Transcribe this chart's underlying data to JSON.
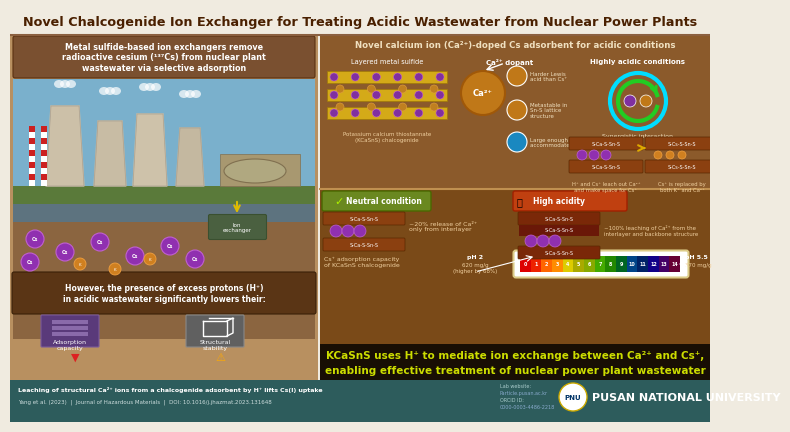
{
  "title": "Novel Chalcogenide Ion Exchanger for Treating Acidic Wastewater from Nuclear Power Plants",
  "bg_color": "#f0ebe0",
  "title_color": "#5a2d0c",
  "title_bg": "#f0ebe0",
  "left_panel_bg": "#b8956a",
  "right_panel_top_bg": "#8b5a2b",
  "right_panel_mid_bg": "#7a4a18",
  "bottom_bar_bg": "#1a0f05",
  "footer_bg": "#2d5c5c",
  "left_title": "Metal sulfide-based ion exchangers remove\nradioactive cesium (¹³⁷Cs) from nuclear plant\nwastewater via selective adsorption",
  "right_title": "Novel calcium ion (Ca²⁺)-doped Cs adsorbent for acidic conditions",
  "neutral_label": "Neutral condition",
  "high_acidity_label": "High acidity",
  "cs_capacity_label": "Cs⁺ adsorption capacity\nof KCaSnS chalcogenide",
  "ph2_label": "pH 2",
  "ph2_value": "620 mg/g\n(higher by 68%)",
  "ph55_label": "pH 5.5",
  "ph55_value": "370 mg/g",
  "bottom_text_line1": "KCaSnS uses H⁺ to mediate ion exchange between Ca²⁺ and Cs⁺,",
  "bottom_text_line2": "enabling effective treatment of nuclear power plant wastewater",
  "footer_line1": "Leaching of structural Ca²⁺ ions from a chalcogenide adsorbent by H⁺ lifts Cs(I) uptake",
  "footer_line2": "Yang et al. (2023)  |  Journal of Hazardous Materials  |  DOI: 10.1016/j.jhazmat.2023.131648",
  "university": "PUSAN NATIONAL UNIVERSITY",
  "however_text": "However, the presence of excess protons (H⁺)\nin acidic wastewater significantly lowers their:",
  "adsorption_label": "Adsorption\ncapacity",
  "structural_label": "Structural\nstability",
  "layered_metal_label": "Layered metal sulfide",
  "ca_dopant_label": "Ca²⁺ dopant",
  "highly_acidic_label": "Highly acidic conditions",
  "lewis_text": "Harder Lewis\nacid than Cs⁺",
  "metastable_text": "Metastable in\nSn-S lattice\nstructure",
  "large_text": "Large enough to\naccommodate Cs⁺",
  "kcasns_label": "Potassium calcium thiostannate\n(KCaSnS) chalcogenide",
  "synergistic_label": "Synergistic interaction",
  "h_leach_text": "H⁺ and Cs⁺ leach out Ca²⁺\nand make space for Cs⁺",
  "cs_replaced_text": "Cs⁺ is replaced by\nboth K⁺ and Ca²⁺",
  "neutral_release": "~20% release of Ca²⁺\nonly from interlayer",
  "high_leach": "~100% leaching of Ca²⁺ from the\ninterlayer and backbone structure",
  "ph_numbers": [
    "0",
    "1",
    "2",
    "3",
    "4",
    "5",
    "6",
    "7",
    "8",
    "9",
    "10",
    "11",
    "12",
    "13",
    "14"
  ],
  "ph_colors": [
    "#dd0000",
    "#ee2200",
    "#ff6600",
    "#ff8c00",
    "#ddcc00",
    "#aaaa00",
    "#88aa00",
    "#44aa00",
    "#228800",
    "#006622",
    "#004488",
    "#002266",
    "#110088",
    "#440066",
    "#660033"
  ],
  "ion_exchanger_label": "Ion\nexchanger",
  "lab_website": "Particle.pusan.ac.kr",
  "orcid_label": "ORCID ID:",
  "orcid_value": "0000-0003-4486-2218"
}
